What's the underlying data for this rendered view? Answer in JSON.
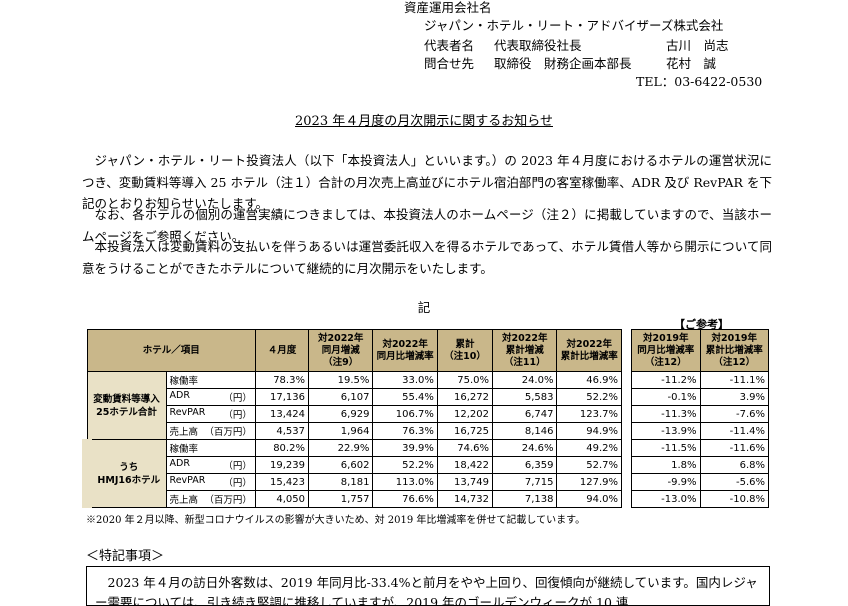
{
  "header": {
    "company_label": "資産運用会社名",
    "company": "ジャパン・ホテル・リート・アドバイザーズ株式会社",
    "rep_label": "代表者名",
    "rep_title": "代表取締役社長",
    "rep_name": "古川　尚志",
    "contact_label": "問合せ先",
    "contact_title": "取締役　財務企画本部長",
    "contact_name": "花村　誠",
    "tel": "TEL：03-6422-0530"
  },
  "title": "2023 年４月度の月次開示に関するお知らせ",
  "paragraphs": [
    "ジャパン・ホテル・リート投資法人（以下「本投資法人」といいます。）の 2023 年４月度におけるホテルの運営状況につき、変動賃料等導入 25 ホテル（注１）合計の月次売上高並びにホテル宿泊部門の客室稼働率、ADR 及び RevPAR を下記のとおりお知らせいたします。",
    "なお、各ホテルの個別の運営実績につきましては、本投資法人のホームページ（注２）に掲載していますので、当該ホームページをご参照ください。",
    "本投資法人は変動賃料の支払いを伴うあるいは運営委託収入を得るホテルであって、ホテル賃借人等から開示について同意をうけることができたホテルについて継続的に月次開示をいたします。"
  ],
  "ki": "記",
  "sanko": "【ご参考】",
  "table": {
    "headers": {
      "hotel_item": "ホテル／項目",
      "april": "４月度",
      "yoy_diff": "対2022年\n同月増減\n（注9）",
      "yoy_rate": "対2022年\n同月比増減率",
      "cum": "累計\n（注10）",
      "cum_diff": "対2022年\n累計増減\n（注11）",
      "cum_rate": "対2022年\n累計比増減率",
      "vs2019_month": "対2019年\n同月比増減率\n（注12）",
      "vs2019_cum": "対2019年\n累計比増減率\n（注12）"
    },
    "groups": [
      {
        "name": "変動賃料等導入\n25ホテル合計",
        "rows": [
          {
            "item": "稼働率",
            "unit": "",
            "v": [
              "78.3%",
              "19.5%",
              "33.0%",
              "75.0%",
              "24.0%",
              "46.9%",
              "-11.2%",
              "-11.1%"
            ]
          },
          {
            "item": "ADR",
            "unit": "（円）",
            "v": [
              "17,136",
              "6,107",
              "55.4%",
              "16,272",
              "5,583",
              "52.2%",
              "-0.1%",
              "3.9%"
            ]
          },
          {
            "item": "RevPAR",
            "unit": "（円）",
            "v": [
              "13,424",
              "6,929",
              "106.7%",
              "12,202",
              "6,747",
              "123.7%",
              "-11.3%",
              "-7.6%"
            ]
          },
          {
            "item": "売上高",
            "unit": "（百万円）",
            "v": [
              "4,537",
              "1,964",
              "76.3%",
              "16,725",
              "8,146",
              "94.9%",
              "-13.9%",
              "-11.4%"
            ]
          }
        ]
      },
      {
        "name": "うち\nHMJ16ホテル",
        "rows": [
          {
            "item": "稼働率",
            "unit": "",
            "v": [
              "80.2%",
              "22.9%",
              "39.9%",
              "74.6%",
              "24.6%",
              "49.2%",
              "-11.5%",
              "-11.6%"
            ]
          },
          {
            "item": "ADR",
            "unit": "（円）",
            "v": [
              "19,239",
              "6,602",
              "52.2%",
              "18,422",
              "6,359",
              "52.7%",
              "1.8%",
              "6.8%"
            ]
          },
          {
            "item": "RevPAR",
            "unit": "（円）",
            "v": [
              "15,423",
              "8,181",
              "113.0%",
              "13,749",
              "7,715",
              "127.9%",
              "-9.9%",
              "-5.6%"
            ]
          },
          {
            "item": "売上高",
            "unit": "（百万円）",
            "v": [
              "4,050",
              "1,757",
              "76.6%",
              "14,732",
              "7,138",
              "94.0%",
              "-13.0%",
              "-10.8%"
            ]
          }
        ]
      }
    ]
  },
  "table_note": "※2020 年２月以降、新型コロナウイルスの影響が大きいため、対 2019 年比増減率を併せて記載しています。",
  "special_heading": "＜特記事項＞",
  "special_text": "2023 年４月の訪日外客数は、2019 年同月比-33.4%と前月をやや上回り、回復傾向が継続しています。国内レジャー需要については、引き続き堅調に推移していますが、2019 年のゴールデンウィークが 10 連"
}
